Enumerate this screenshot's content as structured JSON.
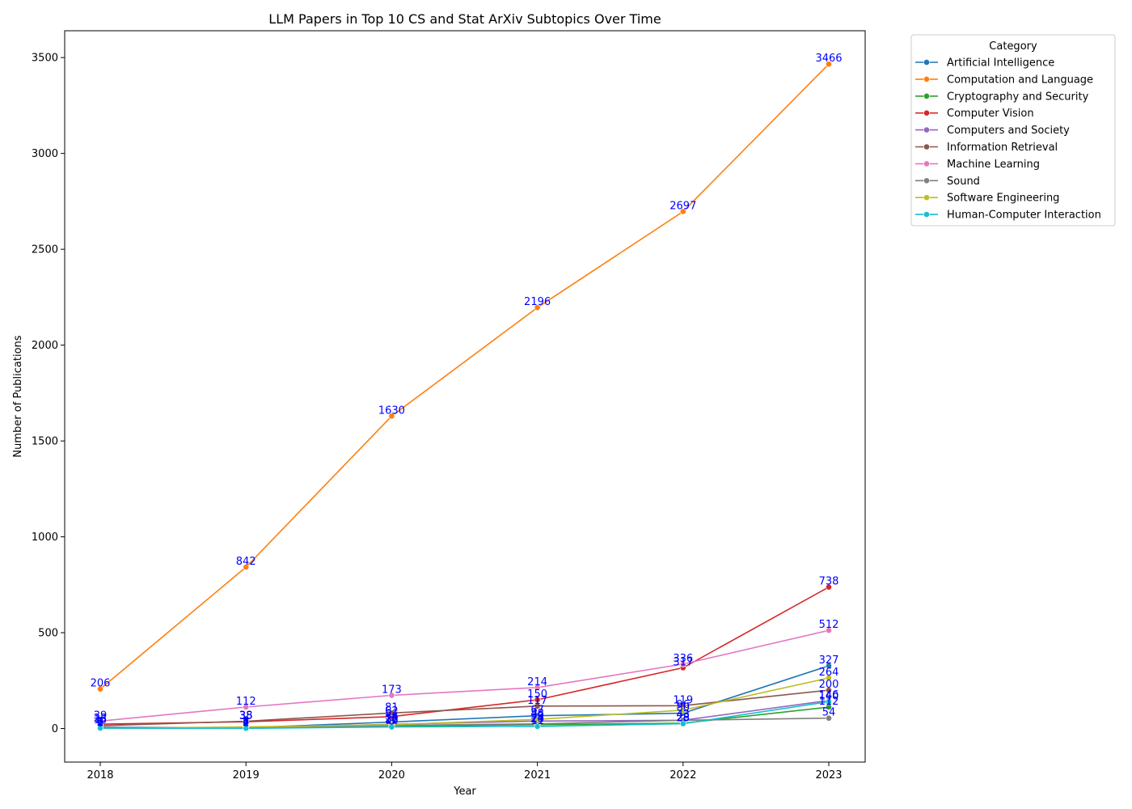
{
  "chart_data": {
    "type": "line",
    "title": "LLM Papers in Top 10 CS and Stat ArXiv Subtopics Over Time",
    "xlabel": "Year",
    "ylabel": "Number of Publications",
    "x": [
      "2018",
      "2019",
      "2020",
      "2021",
      "2022",
      "2023"
    ],
    "ylim": [
      -175,
      3640
    ],
    "yticks": [
      0,
      500,
      1000,
      1500,
      2000,
      2500,
      3000,
      3500
    ],
    "grid": false,
    "legend": {
      "title": "Category",
      "placement": "outside-right"
    },
    "data_label_color": "#0000ff",
    "series": [
      {
        "name": "Artificial Intelligence",
        "color": "#1f77b4",
        "values": [
          6,
          4,
          34,
          67,
          80,
          327
        ]
      },
      {
        "name": "Computation and Language",
        "color": "#ff7f0e",
        "values": [
          206,
          842,
          1630,
          2196,
          2697,
          3466
        ]
      },
      {
        "name": "Cryptography and Security",
        "color": "#2ca02c",
        "values": [
          2,
          2,
          12,
          20,
          28,
          112
        ]
      },
      {
        "name": "Computer Vision",
        "color": "#d62728",
        "values": [
          23,
          35,
          62,
          150,
          317,
          738
        ]
      },
      {
        "name": "Computers and Society",
        "color": "#9467bd",
        "values": [
          2,
          4,
          22,
          39,
          43,
          146
        ]
      },
      {
        "name": "Information Retrieval",
        "color": "#8c564b",
        "values": [
          15,
          38,
          81,
          117,
          119,
          200
        ]
      },
      {
        "name": "Machine Learning",
        "color": "#e377c2",
        "values": [
          39,
          112,
          173,
          214,
          336,
          512
        ]
      },
      {
        "name": "Sound",
        "color": "#7f7f7f",
        "values": [
          3,
          5,
          16,
          24,
          43,
          54
        ]
      },
      {
        "name": "Software Engineering",
        "color": "#bcbd22",
        "values": [
          1,
          8,
          20,
          48,
          96,
          264
        ]
      },
      {
        "name": "Human-Computer Interaction",
        "color": "#17becf",
        "values": [
          2,
          1,
          8,
          11,
          25,
          140
        ]
      }
    ]
  }
}
